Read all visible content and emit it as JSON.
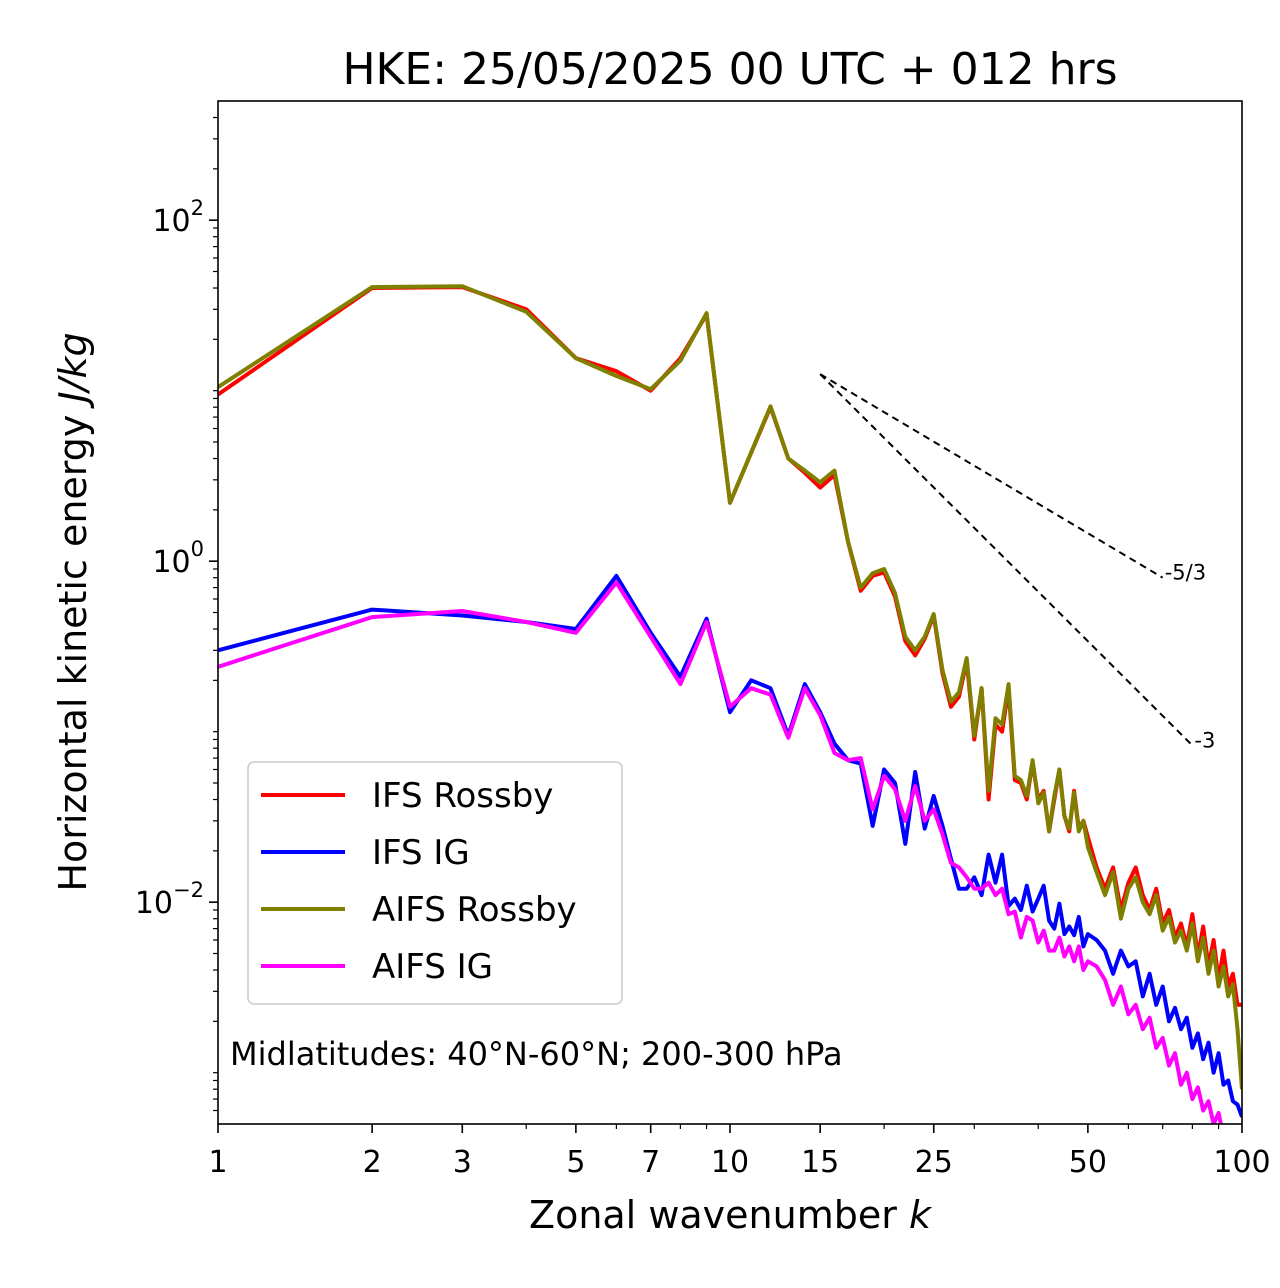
{
  "chart_data": {
    "type": "line",
    "title": "HKE: 25/05/2025 00 UTC + 012 hrs",
    "xlabel_text": "Zonal wavenumber ",
    "xlabel_var": "k",
    "ylabel_text": "Horizontal kinetic energy ",
    "ylabel_unit": "J/kg",
    "x_scale": "log",
    "y_scale": "log",
    "xlim": [
      1,
      100
    ],
    "ylim": [
      0.0005,
      500
    ],
    "grid": false,
    "legend_position": "lower-left",
    "x_ticks": [
      {
        "value": 1,
        "label": "1"
      },
      {
        "value": 2,
        "label": "2"
      },
      {
        "value": 3,
        "label": "3"
      },
      {
        "value": 5,
        "label": "5"
      },
      {
        "value": 7,
        "label": "7"
      },
      {
        "value": 10,
        "label": "10"
      },
      {
        "value": 15,
        "label": "15"
      },
      {
        "value": 25,
        "label": "25"
      },
      {
        "value": 50,
        "label": "50"
      },
      {
        "value": 100,
        "label": "100"
      }
    ],
    "y_ticks": [
      {
        "value": 100,
        "base": "10",
        "exp": "2"
      },
      {
        "value": 1,
        "base": "10",
        "exp": "0"
      },
      {
        "value": 0.01,
        "base": "10",
        "exp": "−2"
      }
    ],
    "annotation": "Midlatitudes: 40°N-60°N; 200-300 hPa",
    "reference_lines": [
      {
        "label": "-5/3",
        "x": [
          15,
          70
        ],
        "y": [
          12.5,
          0.8
        ]
      },
      {
        "label": "-3",
        "x": [
          15,
          80
        ],
        "y": [
          12.5,
          0.083
        ]
      }
    ],
    "series": [
      {
        "name": "IFS Rossby",
        "color": "#ff0000",
        "x": [
          1,
          2,
          3,
          4,
          5,
          6,
          7,
          8,
          9,
          10,
          12,
          13,
          14,
          15,
          16,
          17,
          18,
          19,
          20,
          21,
          22,
          23,
          24,
          25,
          26,
          27,
          28,
          29,
          30,
          31,
          32,
          33,
          34,
          35,
          36,
          37,
          38,
          39,
          40,
          41,
          42,
          43,
          44,
          45,
          46,
          47,
          48,
          49,
          50,
          52,
          54,
          56,
          58,
          60,
          62,
          64,
          66,
          68,
          70,
          72,
          74,
          76,
          78,
          80,
          82,
          84,
          86,
          88,
          90,
          92,
          94,
          96,
          98,
          100
        ],
        "y": [
          9.5,
          40,
          40.5,
          30,
          15.5,
          13,
          10,
          15.5,
          28,
          2.2,
          8,
          4,
          3.3,
          2.7,
          3.2,
          1.3,
          0.67,
          0.82,
          0.86,
          0.62,
          0.34,
          0.28,
          0.35,
          0.48,
          0.22,
          0.14,
          0.16,
          0.26,
          0.09,
          0.18,
          0.04,
          0.11,
          0.1,
          0.18,
          0.052,
          0.05,
          0.04,
          0.066,
          0.04,
          0.045,
          0.026,
          0.04,
          0.06,
          0.032,
          0.026,
          0.045,
          0.027,
          0.03,
          0.024,
          0.016,
          0.012,
          0.016,
          0.009,
          0.013,
          0.016,
          0.011,
          0.009,
          0.012,
          0.0075,
          0.009,
          0.0062,
          0.0075,
          0.0055,
          0.0085,
          0.0048,
          0.0072,
          0.0042,
          0.006,
          0.0035,
          0.0052,
          0.0032,
          0.0038,
          0.0025,
          0.0025
        ]
      },
      {
        "name": "IFS IG",
        "color": "#0000ff",
        "x": [
          1,
          2,
          3,
          4,
          5,
          6,
          7,
          8,
          9,
          10,
          11,
          12,
          13,
          14,
          15,
          16,
          17,
          18,
          19,
          20,
          21,
          22,
          23,
          24,
          25,
          26,
          27,
          28,
          29,
          30,
          31,
          32,
          33,
          34,
          35,
          36,
          37,
          38,
          39,
          40,
          41,
          42,
          43,
          44,
          45,
          46,
          47,
          48,
          49,
          50,
          52,
          54,
          56,
          58,
          60,
          62,
          64,
          66,
          68,
          70,
          72,
          74,
          76,
          78,
          80,
          82,
          84,
          86,
          88,
          90,
          92,
          94,
          96,
          98,
          100
        ],
        "y": [
          0.3,
          0.52,
          0.48,
          0.44,
          0.4,
          0.82,
          0.38,
          0.21,
          0.46,
          0.13,
          0.2,
          0.18,
          0.095,
          0.19,
          0.13,
          0.085,
          0.068,
          0.065,
          0.028,
          0.06,
          0.05,
          0.022,
          0.058,
          0.027,
          0.042,
          0.028,
          0.018,
          0.012,
          0.012,
          0.014,
          0.011,
          0.019,
          0.013,
          0.019,
          0.0095,
          0.0105,
          0.009,
          0.0125,
          0.0088,
          0.0105,
          0.0125,
          0.0078,
          0.007,
          0.0098,
          0.0065,
          0.0072,
          0.0064,
          0.0082,
          0.0055,
          0.0065,
          0.006,
          0.0052,
          0.0038,
          0.0052,
          0.0042,
          0.0045,
          0.0028,
          0.0038,
          0.0025,
          0.0032,
          0.002,
          0.0024,
          0.0018,
          0.0021,
          0.0014,
          0.0017,
          0.0012,
          0.0015,
          0.001,
          0.0013,
          0.00085,
          0.0009,
          0.00068,
          0.00065,
          0.00055
        ]
      },
      {
        "name": "AIFS Rossby",
        "color": "#808000",
        "x": [
          1,
          2,
          3,
          4,
          5,
          6,
          7,
          8,
          9,
          10,
          12,
          13,
          14,
          15,
          16,
          17,
          18,
          19,
          20,
          21,
          22,
          23,
          24,
          25,
          26,
          27,
          28,
          29,
          30,
          31,
          32,
          33,
          34,
          35,
          36,
          37,
          38,
          39,
          40,
          41,
          42,
          43,
          44,
          45,
          46,
          47,
          48,
          49,
          50,
          52,
          54,
          56,
          58,
          60,
          62,
          64,
          66,
          68,
          70,
          72,
          74,
          76,
          78,
          80,
          82,
          84,
          86,
          88,
          90,
          92,
          94,
          96,
          98,
          100
        ],
        "y": [
          10.5,
          40.5,
          41,
          29,
          15.5,
          12.2,
          10.2,
          15,
          28.5,
          2.2,
          8.1,
          4,
          3.4,
          2.9,
          3.4,
          1.3,
          0.7,
          0.85,
          0.9,
          0.65,
          0.36,
          0.3,
          0.36,
          0.49,
          0.23,
          0.15,
          0.17,
          0.27,
          0.095,
          0.18,
          0.045,
          0.12,
          0.11,
          0.19,
          0.055,
          0.052,
          0.042,
          0.068,
          0.038,
          0.044,
          0.026,
          0.042,
          0.06,
          0.032,
          0.027,
          0.044,
          0.026,
          0.03,
          0.021,
          0.015,
          0.011,
          0.015,
          0.008,
          0.012,
          0.014,
          0.01,
          0.0085,
          0.011,
          0.0068,
          0.0082,
          0.0058,
          0.0068,
          0.0052,
          0.0075,
          0.0045,
          0.0062,
          0.0038,
          0.0052,
          0.0032,
          0.0042,
          0.0028,
          0.0033,
          0.0018,
          0.0008
        ]
      },
      {
        "name": "AIFS IG",
        "color": "#ff00ff",
        "x": [
          1,
          2,
          3,
          4,
          5,
          6,
          7,
          8,
          9,
          10,
          11,
          12,
          13,
          14,
          15,
          16,
          17,
          18,
          19,
          20,
          21,
          22,
          23,
          24,
          25,
          26,
          27,
          28,
          29,
          30,
          31,
          32,
          33,
          34,
          35,
          36,
          37,
          38,
          39,
          40,
          41,
          42,
          43,
          44,
          45,
          46,
          47,
          48,
          49,
          50,
          52,
          54,
          56,
          58,
          60,
          62,
          64,
          66,
          68,
          70,
          72,
          74,
          76,
          78,
          80,
          82,
          84,
          86,
          88,
          90,
          92,
          94,
          96
        ],
        "y": [
          0.24,
          0.47,
          0.51,
          0.44,
          0.38,
          0.75,
          0.36,
          0.19,
          0.44,
          0.14,
          0.18,
          0.165,
          0.092,
          0.18,
          0.125,
          0.075,
          0.068,
          0.07,
          0.035,
          0.055,
          0.046,
          0.03,
          0.048,
          0.03,
          0.035,
          0.025,
          0.017,
          0.016,
          0.014,
          0.012,
          0.012,
          0.013,
          0.011,
          0.012,
          0.0085,
          0.0088,
          0.0062,
          0.0082,
          0.0078,
          0.0058,
          0.0068,
          0.0052,
          0.0052,
          0.0062,
          0.0048,
          0.0055,
          0.0045,
          0.0055,
          0.004,
          0.0045,
          0.0042,
          0.0035,
          0.0025,
          0.0032,
          0.0022,
          0.0025,
          0.0018,
          0.0021,
          0.0014,
          0.0016,
          0.0011,
          0.0013,
          0.00085,
          0.001,
          0.0007,
          0.00082,
          0.0006,
          0.00068,
          0.0005,
          0.00058,
          0.00042,
          0.00048,
          0.0003
        ]
      }
    ]
  }
}
